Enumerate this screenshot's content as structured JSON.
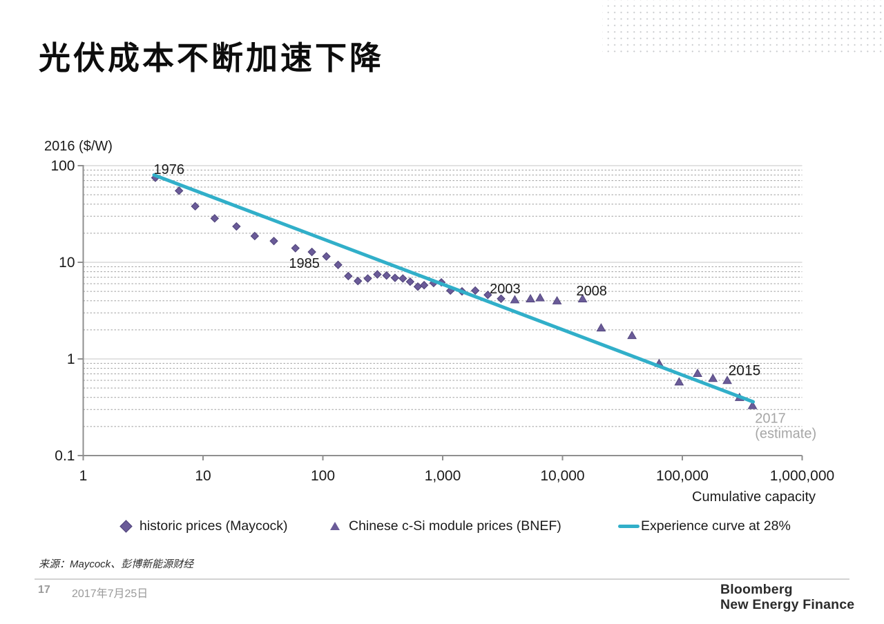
{
  "slide": {
    "title": "光伏成本不断加速下降",
    "source": "来源：Maycock、彭博新能源财经",
    "page_number": "17",
    "date": "2017年7月25日",
    "logo_line1": "Bloomberg",
    "logo_line2": "New Energy Finance"
  },
  "colors": {
    "marker_purple": "#6A5B98",
    "marker_purple_border": "#4E4279",
    "curve_teal": "#31AFC9",
    "grid_minor": "#9f9f9f",
    "grid_major": "#c6c6c6",
    "axis_gray": "#8f8f8f",
    "annotation_black": "#1a1a1a",
    "annotation_gray": "#a6a6a6"
  },
  "chart_data": {
    "type": "scatter",
    "x_axis": {
      "label": "Cumulative capacity",
      "scale": "log",
      "range": [
        1,
        1000000
      ],
      "tick_labels": [
        "1",
        "10",
        "100",
        "1,000",
        "10,000",
        "100,000",
        "1,000,000"
      ],
      "tick_values": [
        1,
        10,
        100,
        1000,
        10000,
        100000,
        1000000
      ]
    },
    "y_axis": {
      "label": "2016 ($/W)",
      "scale": "log",
      "range": [
        0.1,
        100
      ],
      "tick_labels": [
        "100",
        "10",
        "1",
        "0.1"
      ],
      "tick_values": [
        100,
        10,
        1,
        0.1
      ]
    },
    "grid": {
      "horizontal_minor_dashed": true,
      "vertical": false
    },
    "series": [
      {
        "name": "historic prices (Maycock)",
        "marker": "diamond",
        "points": [
          [
            4,
            75
          ],
          [
            6.3,
            55
          ],
          [
            8.6,
            38
          ],
          [
            12.5,
            28.5
          ],
          [
            19,
            23.5
          ],
          [
            27,
            18.7
          ],
          [
            39,
            16.6
          ],
          [
            59,
            14
          ],
          [
            81,
            12.8
          ],
          [
            107,
            11.5
          ],
          [
            134,
            9.4
          ],
          [
            163,
            7.2
          ],
          [
            196,
            6.4
          ],
          [
            237,
            6.8
          ],
          [
            285,
            7.5
          ],
          [
            340,
            7.3
          ],
          [
            400,
            6.9
          ],
          [
            465,
            6.8
          ],
          [
            535,
            6.3
          ],
          [
            620,
            5.6
          ],
          [
            700,
            5.8
          ],
          [
            840,
            6.1
          ],
          [
            975,
            6.2
          ],
          [
            1160,
            5.1
          ],
          [
            1450,
            5.0
          ],
          [
            1870,
            5.1
          ],
          [
            2380,
            4.6
          ],
          [
            3070,
            4.2
          ]
        ]
      },
      {
        "name": "Chinese c-Si module prices (BNEF)",
        "marker": "triangle",
        "points": [
          [
            4000,
            4.1
          ],
          [
            5400,
            4.2
          ],
          [
            6500,
            4.3
          ],
          [
            9000,
            4.0
          ],
          [
            14700,
            4.2
          ],
          [
            21000,
            2.1
          ],
          [
            38000,
            1.75
          ],
          [
            64000,
            0.9
          ],
          [
            94000,
            0.58
          ],
          [
            134000,
            0.71
          ],
          [
            180000,
            0.63
          ],
          [
            237000,
            0.6
          ],
          [
            300000,
            0.4
          ],
          [
            385000,
            0.33
          ]
        ]
      },
      {
        "name": "Experience curve at 28%",
        "marker": "line",
        "points": [
          [
            3.9,
            80
          ],
          [
            390000,
            0.36
          ]
        ]
      }
    ],
    "annotations": [
      {
        "label": "1976",
        "x": 5.2,
        "y": 82,
        "color": "#1a1a1a",
        "size": 20,
        "anchor": "middle"
      },
      {
        "label": "1985",
        "x": 70,
        "y": 8.8,
        "color": "#1a1a1a",
        "size": 20,
        "anchor": "middle"
      },
      {
        "label": "2003",
        "x": 3320,
        "y": 4.76,
        "color": "#1a1a1a",
        "size": 20,
        "anchor": "middle"
      },
      {
        "label": "2008",
        "x": 17500,
        "y": 4.53,
        "color": "#1a1a1a",
        "size": 20,
        "anchor": "middle"
      },
      {
        "label": "2015",
        "x": 330000,
        "y": 0.68,
        "color": "#1a1a1a",
        "size": 21,
        "anchor": "middle"
      },
      {
        "label": "2017",
        "x": 404000,
        "y": 0.218,
        "color": "#a6a6a6",
        "size": 20,
        "anchor": "start"
      },
      {
        "label": "(estimate)",
        "x": 404000,
        "y": 0.152,
        "color": "#a6a6a6",
        "size": 20,
        "anchor": "start"
      }
    ],
    "legend": [
      {
        "marker": "diamond",
        "label": "historic prices (Maycock)"
      },
      {
        "marker": "triangle",
        "label": "Chinese c-Si module prices (BNEF)"
      },
      {
        "marker": "line",
        "label": "Experience curve at 28%"
      }
    ],
    "legend_position": "bottom"
  }
}
